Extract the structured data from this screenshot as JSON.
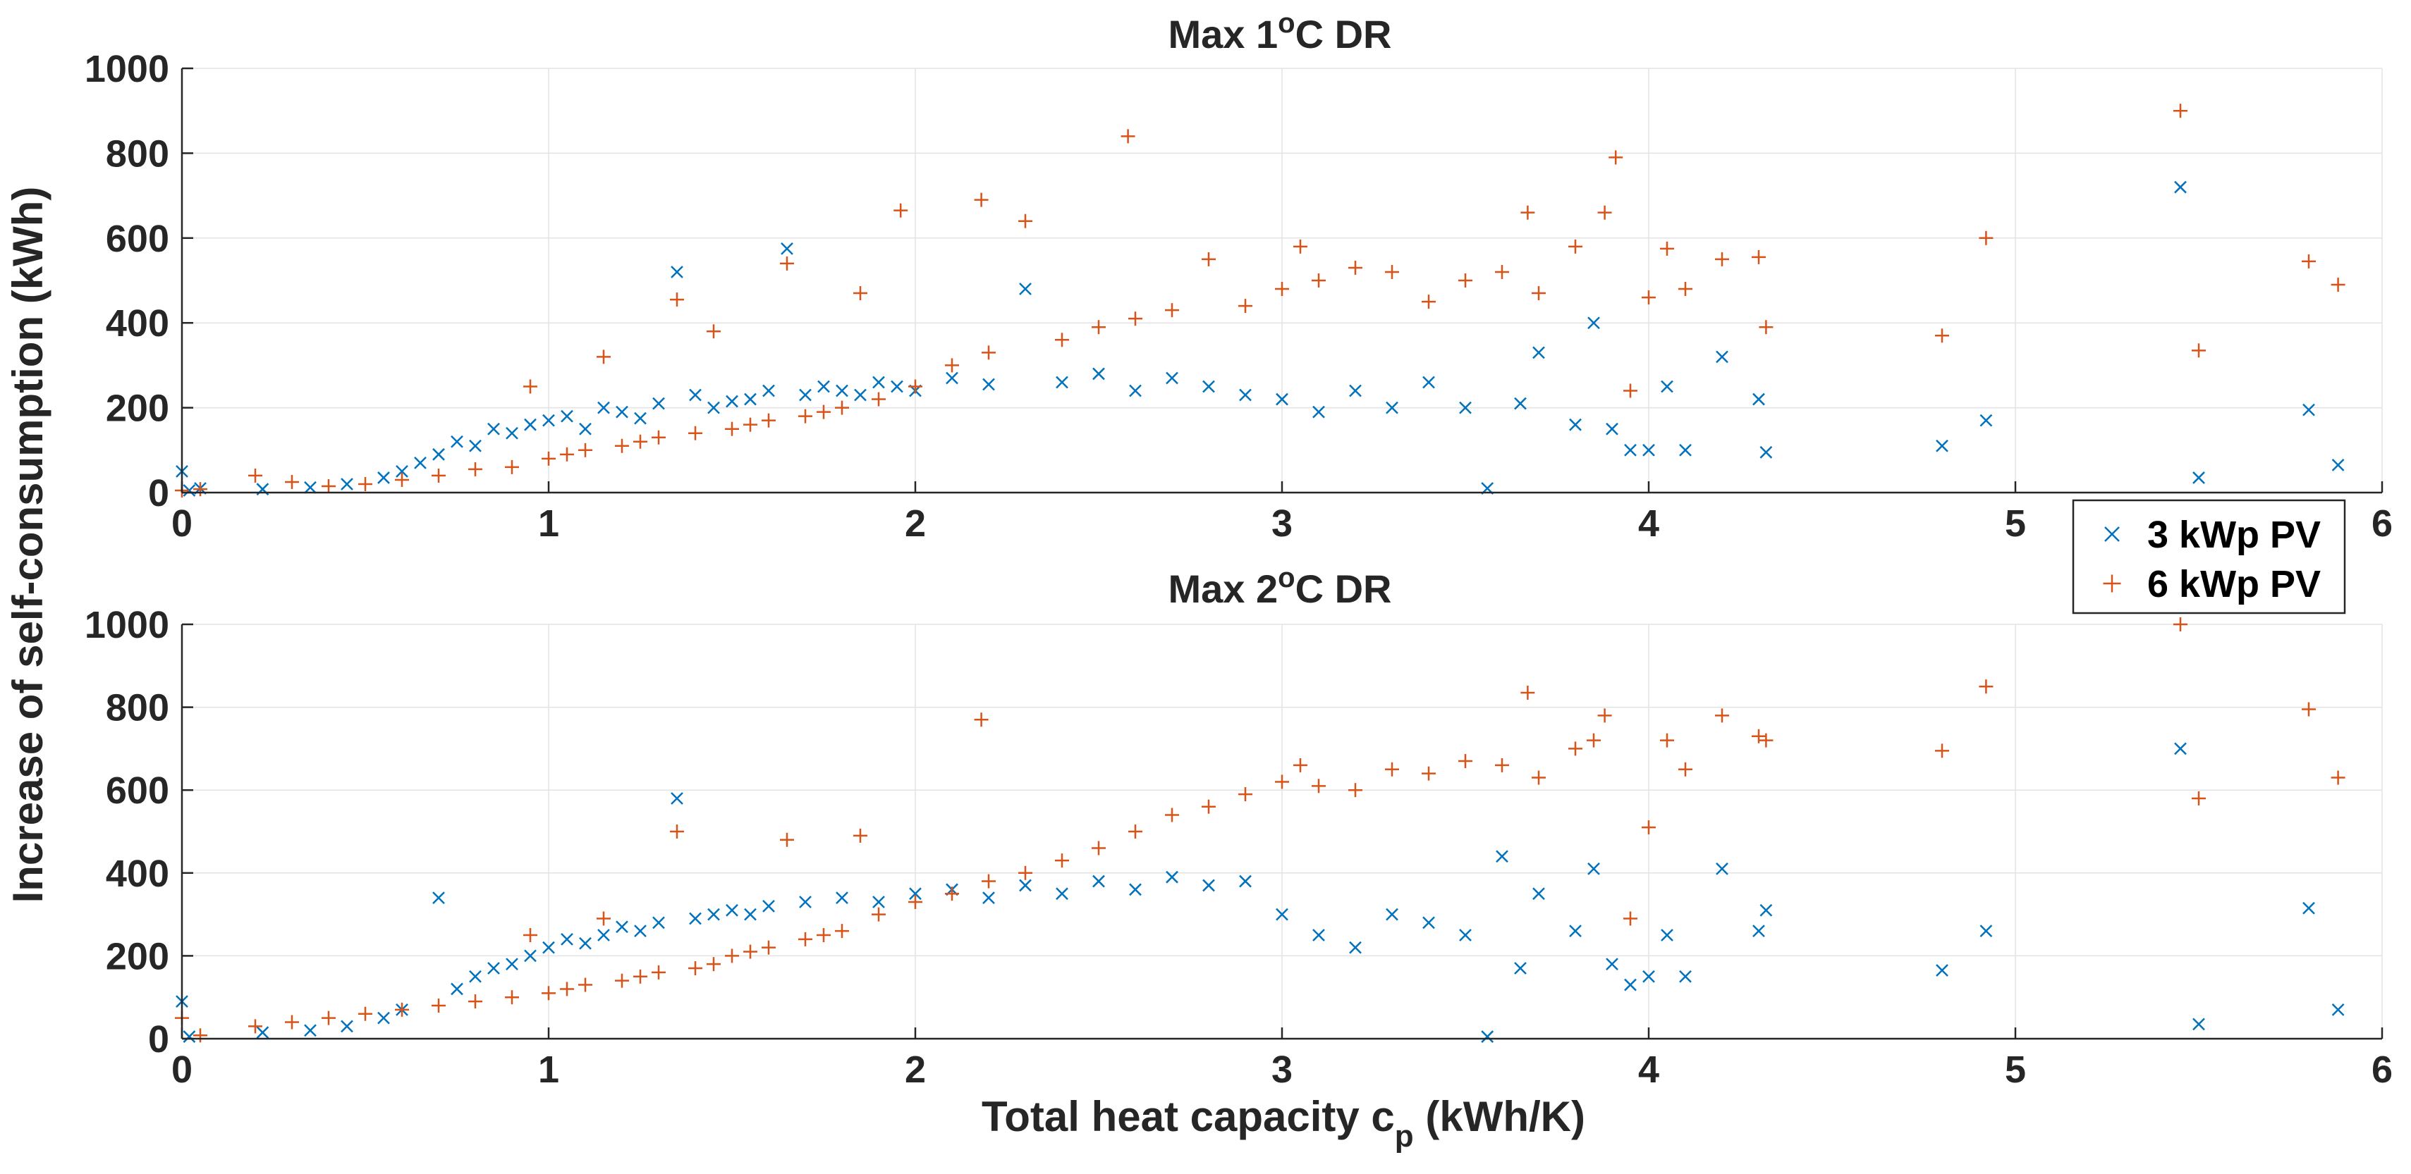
{
  "figure": {
    "ylabel": "Increase of self-consumption (kWh)",
    "xlabel_main": "Total heat capacity c",
    "xlabel_sub": "p",
    "xlabel_units": " (kWh/K)"
  },
  "legend": {
    "placement": "top-right of lower panel",
    "entries": [
      {
        "label": "3 kWp PV",
        "marker": "x",
        "color": "#0072BD"
      },
      {
        "label": "6 kWp PV",
        "marker": "+",
        "color": "#D95319"
      }
    ]
  },
  "chart_data": [
    {
      "type": "scatter",
      "title_prefix": "Max 1",
      "title_sup": "o",
      "title_suffix": "C DR",
      "xlim": [
        0,
        6
      ],
      "ylim": [
        0,
        1000
      ],
      "xticks": [
        0,
        1,
        2,
        3,
        4,
        5,
        6
      ],
      "yticks": [
        0,
        200,
        400,
        600,
        800,
        1000
      ],
      "grid": true,
      "series": [
        {
          "name": "3 kWp PV",
          "marker": "x",
          "color": "#0072BD",
          "points": [
            [
              0.0,
              50
            ],
            [
              0.02,
              5
            ],
            [
              0.05,
              10
            ],
            [
              0.22,
              8
            ],
            [
              0.35,
              12
            ],
            [
              0.45,
              20
            ],
            [
              0.55,
              35
            ],
            [
              0.6,
              50
            ],
            [
              0.65,
              70
            ],
            [
              0.7,
              90
            ],
            [
              0.75,
              120
            ],
            [
              0.8,
              110
            ],
            [
              0.85,
              150
            ],
            [
              0.9,
              140
            ],
            [
              0.95,
              160
            ],
            [
              1.0,
              170
            ],
            [
              1.05,
              180
            ],
            [
              1.1,
              150
            ],
            [
              1.15,
              200
            ],
            [
              1.2,
              190
            ],
            [
              1.25,
              175
            ],
            [
              1.3,
              210
            ],
            [
              1.35,
              520
            ],
            [
              1.4,
              230
            ],
            [
              1.45,
              200
            ],
            [
              1.5,
              215
            ],
            [
              1.55,
              220
            ],
            [
              1.6,
              240
            ],
            [
              1.65,
              575
            ],
            [
              1.7,
              230
            ],
            [
              1.75,
              250
            ],
            [
              1.8,
              240
            ],
            [
              1.85,
              230
            ],
            [
              1.9,
              260
            ],
            [
              1.95,
              250
            ],
            [
              2.0,
              240
            ],
            [
              2.1,
              270
            ],
            [
              2.2,
              255
            ],
            [
              2.3,
              480
            ],
            [
              2.4,
              260
            ],
            [
              2.5,
              280
            ],
            [
              2.6,
              240
            ],
            [
              2.7,
              270
            ],
            [
              2.8,
              250
            ],
            [
              2.9,
              230
            ],
            [
              3.0,
              220
            ],
            [
              3.1,
              190
            ],
            [
              3.2,
              240
            ],
            [
              3.3,
              200
            ],
            [
              3.4,
              260
            ],
            [
              3.5,
              200
            ],
            [
              3.56,
              10
            ],
            [
              3.65,
              210
            ],
            [
              3.7,
              330
            ],
            [
              3.8,
              160
            ],
            [
              3.85,
              400
            ],
            [
              3.9,
              150
            ],
            [
              3.95,
              100
            ],
            [
              4.0,
              100
            ],
            [
              4.05,
              250
            ],
            [
              4.1,
              100
            ],
            [
              4.2,
              320
            ],
            [
              4.3,
              220
            ],
            [
              4.32,
              95
            ],
            [
              4.8,
              110
            ],
            [
              4.92,
              170
            ],
            [
              5.45,
              720
            ],
            [
              5.5,
              35
            ],
            [
              5.8,
              195
            ],
            [
              5.88,
              65
            ]
          ]
        },
        {
          "name": "6 kWp PV",
          "marker": "+",
          "color": "#D95319",
          "points": [
            [
              0.0,
              5
            ],
            [
              0.05,
              8
            ],
            [
              0.2,
              40
            ],
            [
              0.3,
              25
            ],
            [
              0.4,
              15
            ],
            [
              0.5,
              20
            ],
            [
              0.6,
              30
            ],
            [
              0.7,
              40
            ],
            [
              0.8,
              55
            ],
            [
              0.9,
              60
            ],
            [
              0.95,
              250
            ],
            [
              1.0,
              80
            ],
            [
              1.05,
              90
            ],
            [
              1.1,
              100
            ],
            [
              1.15,
              320
            ],
            [
              1.2,
              110
            ],
            [
              1.25,
              120
            ],
            [
              1.3,
              130
            ],
            [
              1.35,
              455
            ],
            [
              1.4,
              140
            ],
            [
              1.45,
              380
            ],
            [
              1.5,
              150
            ],
            [
              1.55,
              160
            ],
            [
              1.6,
              170
            ],
            [
              1.65,
              540
            ],
            [
              1.7,
              180
            ],
            [
              1.75,
              190
            ],
            [
              1.8,
              200
            ],
            [
              1.85,
              470
            ],
            [
              1.9,
              220
            ],
            [
              1.96,
              665
            ],
            [
              2.0,
              250
            ],
            [
              2.1,
              300
            ],
            [
              2.18,
              690
            ],
            [
              2.2,
              330
            ],
            [
              2.3,
              640
            ],
            [
              2.4,
              360
            ],
            [
              2.5,
              390
            ],
            [
              2.58,
              840
            ],
            [
              2.6,
              410
            ],
            [
              2.7,
              430
            ],
            [
              2.8,
              550
            ],
            [
              2.9,
              440
            ],
            [
              3.0,
              480
            ],
            [
              3.05,
              580
            ],
            [
              3.1,
              500
            ],
            [
              3.2,
              530
            ],
            [
              3.3,
              520
            ],
            [
              3.4,
              450
            ],
            [
              3.5,
              500
            ],
            [
              3.6,
              520
            ],
            [
              3.67,
              660
            ],
            [
              3.7,
              470
            ],
            [
              3.8,
              580
            ],
            [
              3.88,
              660
            ],
            [
              3.91,
              790
            ],
            [
              3.95,
              240
            ],
            [
              4.0,
              460
            ],
            [
              4.05,
              575
            ],
            [
              4.1,
              480
            ],
            [
              4.2,
              550
            ],
            [
              4.3,
              555
            ],
            [
              4.32,
              390
            ],
            [
              4.8,
              370
            ],
            [
              4.92,
              600
            ],
            [
              5.45,
              900
            ],
            [
              5.5,
              335
            ],
            [
              5.8,
              545
            ],
            [
              5.88,
              490
            ]
          ]
        }
      ]
    },
    {
      "type": "scatter",
      "title_prefix": "Max 2",
      "title_sup": "o",
      "title_suffix": "C DR",
      "xlim": [
        0,
        6
      ],
      "ylim": [
        0,
        1000
      ],
      "xticks": [
        0,
        1,
        2,
        3,
        4,
        5,
        6
      ],
      "yticks": [
        0,
        200,
        400,
        600,
        800,
        1000
      ],
      "grid": true,
      "series": [
        {
          "name": "3 kWp PV",
          "marker": "x",
          "color": "#0072BD",
          "points": [
            [
              0.0,
              90
            ],
            [
              0.02,
              5
            ],
            [
              0.22,
              15
            ],
            [
              0.35,
              20
            ],
            [
              0.45,
              30
            ],
            [
              0.55,
              50
            ],
            [
              0.6,
              70
            ],
            [
              0.7,
              340
            ],
            [
              0.75,
              120
            ],
            [
              0.8,
              150
            ],
            [
              0.85,
              170
            ],
            [
              0.9,
              180
            ],
            [
              0.95,
              200
            ],
            [
              1.0,
              220
            ],
            [
              1.05,
              240
            ],
            [
              1.1,
              230
            ],
            [
              1.15,
              250
            ],
            [
              1.2,
              270
            ],
            [
              1.25,
              260
            ],
            [
              1.3,
              280
            ],
            [
              1.35,
              580
            ],
            [
              1.4,
              290
            ],
            [
              1.45,
              300
            ],
            [
              1.5,
              310
            ],
            [
              1.55,
              300
            ],
            [
              1.6,
              320
            ],
            [
              1.7,
              330
            ],
            [
              1.8,
              340
            ],
            [
              1.9,
              330
            ],
            [
              2.0,
              350
            ],
            [
              2.1,
              360
            ],
            [
              2.2,
              340
            ],
            [
              2.3,
              370
            ],
            [
              2.4,
              350
            ],
            [
              2.5,
              380
            ],
            [
              2.6,
              360
            ],
            [
              2.7,
              390
            ],
            [
              2.8,
              370
            ],
            [
              2.9,
              380
            ],
            [
              3.0,
              300
            ],
            [
              3.1,
              250
            ],
            [
              3.2,
              220
            ],
            [
              3.3,
              300
            ],
            [
              3.4,
              280
            ],
            [
              3.5,
              250
            ],
            [
              3.56,
              5
            ],
            [
              3.6,
              440
            ],
            [
              3.65,
              170
            ],
            [
              3.7,
              350
            ],
            [
              3.8,
              260
            ],
            [
              3.85,
              410
            ],
            [
              3.9,
              180
            ],
            [
              3.95,
              130
            ],
            [
              4.0,
              150
            ],
            [
              4.05,
              250
            ],
            [
              4.1,
              150
            ],
            [
              4.2,
              410
            ],
            [
              4.3,
              260
            ],
            [
              4.32,
              310
            ],
            [
              4.8,
              165
            ],
            [
              4.92,
              260
            ],
            [
              5.45,
              700
            ],
            [
              5.5,
              35
            ],
            [
              5.8,
              315
            ],
            [
              5.88,
              70
            ]
          ]
        },
        {
          "name": "6 kWp PV",
          "marker": "+",
          "color": "#D95319",
          "points": [
            [
              0.0,
              50
            ],
            [
              0.05,
              8
            ],
            [
              0.2,
              30
            ],
            [
              0.3,
              40
            ],
            [
              0.4,
              50
            ],
            [
              0.5,
              60
            ],
            [
              0.6,
              70
            ],
            [
              0.7,
              80
            ],
            [
              0.8,
              90
            ],
            [
              0.9,
              100
            ],
            [
              0.95,
              250
            ],
            [
              1.0,
              110
            ],
            [
              1.05,
              120
            ],
            [
              1.1,
              130
            ],
            [
              1.15,
              290
            ],
            [
              1.2,
              140
            ],
            [
              1.25,
              150
            ],
            [
              1.3,
              160
            ],
            [
              1.35,
              500
            ],
            [
              1.4,
              170
            ],
            [
              1.45,
              180
            ],
            [
              1.5,
              200
            ],
            [
              1.55,
              210
            ],
            [
              1.6,
              220
            ],
            [
              1.65,
              480
            ],
            [
              1.7,
              240
            ],
            [
              1.75,
              250
            ],
            [
              1.8,
              260
            ],
            [
              1.85,
              490
            ],
            [
              1.9,
              300
            ],
            [
              2.0,
              330
            ],
            [
              2.1,
              350
            ],
            [
              2.18,
              770
            ],
            [
              2.2,
              380
            ],
            [
              2.3,
              400
            ],
            [
              2.4,
              430
            ],
            [
              2.5,
              460
            ],
            [
              2.6,
              500
            ],
            [
              2.7,
              540
            ],
            [
              2.8,
              560
            ],
            [
              2.9,
              590
            ],
            [
              3.0,
              620
            ],
            [
              3.05,
              660
            ],
            [
              3.1,
              610
            ],
            [
              3.2,
              600
            ],
            [
              3.3,
              650
            ],
            [
              3.4,
              640
            ],
            [
              3.5,
              670
            ],
            [
              3.6,
              660
            ],
            [
              3.67,
              835
            ],
            [
              3.7,
              630
            ],
            [
              3.8,
              700
            ],
            [
              3.85,
              720
            ],
            [
              3.88,
              780
            ],
            [
              3.95,
              290
            ],
            [
              4.0,
              510
            ],
            [
              4.05,
              720
            ],
            [
              4.1,
              650
            ],
            [
              4.2,
              780
            ],
            [
              4.3,
              730
            ],
            [
              4.32,
              720
            ],
            [
              4.8,
              695
            ],
            [
              4.92,
              850
            ],
            [
              5.45,
              1000
            ],
            [
              5.5,
              580
            ],
            [
              5.8,
              795
            ],
            [
              5.88,
              630
            ]
          ]
        }
      ]
    }
  ]
}
